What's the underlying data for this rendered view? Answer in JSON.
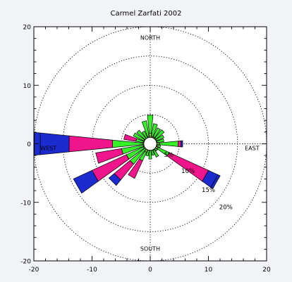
{
  "chart_data": {
    "type": "wind-rose",
    "title": "Carmel Zarfati 2002",
    "xlim": [
      -20,
      20
    ],
    "ylim": [
      -20,
      20
    ],
    "x_ticks": [
      "-20",
      "-10",
      "0",
      "10",
      "20"
    ],
    "y_ticks": [
      "20",
      "10",
      "0",
      "-10",
      "-20"
    ],
    "direction_labels": {
      "north": "NORTH",
      "south": "SOUTH",
      "east": "EAST",
      "west": "WEST"
    },
    "ring_labels": [
      "5%",
      "10%",
      "15%",
      "20%"
    ],
    "ring_values": [
      5,
      10,
      15,
      20
    ],
    "colors": {
      "bin1": "#a7cf3a",
      "bin2": "#35f228",
      "bin3": "#f0158a",
      "bin4": "#1c2bd0",
      "panel": "#ffffff",
      "background": "#f1f3f6"
    },
    "calm_radius": 1.1,
    "sectors": [
      {
        "direction_deg": 0,
        "cumulative": [
          1.8,
          4.9
        ]
      },
      {
        "direction_deg": 15,
        "cumulative": [
          1.3,
          3.5
        ]
      },
      {
        "direction_deg": 30,
        "cumulative": [
          1.3,
          3.0
        ]
      },
      {
        "direction_deg": 45,
        "cumulative": [
          1.3,
          3.1
        ]
      },
      {
        "direction_deg": 60,
        "cumulative": [
          1.2,
          2.6
        ]
      },
      {
        "direction_deg": 75,
        "cumulative": [
          1.2,
          2.4
        ]
      },
      {
        "direction_deg": 90,
        "cumulative": [
          1.6,
          4.8,
          5.3,
          5.6
        ]
      },
      {
        "direction_deg": 105,
        "cumulative": [
          1.2,
          1.8
        ]
      },
      {
        "direction_deg": 120,
        "cumulative": [
          1.5,
          3.6,
          11.0,
          12.8,
          13.2
        ]
      },
      {
        "direction_deg": 135,
        "cumulative": [
          1.1,
          1.6
        ]
      },
      {
        "direction_deg": 150,
        "cumulative": [
          1.2,
          2.5
        ]
      },
      {
        "direction_deg": 165,
        "cumulative": [
          1.1,
          2.0
        ]
      },
      {
        "direction_deg": 180,
        "cumulative": [
          1.1,
          2.6
        ]
      },
      {
        "direction_deg": 195,
        "cumulative": [
          1.1,
          2.1
        ]
      },
      {
        "direction_deg": 210,
        "cumulative": [
          1.6,
          3.2,
          6.5
        ]
      },
      {
        "direction_deg": 225,
        "cumulative": [
          1.1,
          4.5,
          8.0,
          9.2
        ]
      },
      {
        "direction_deg": 240,
        "cumulative": [
          1.3,
          4.5,
          11.0,
          14.5
        ]
      },
      {
        "direction_deg": 255,
        "cumulative": [
          1.2,
          5.0,
          9.5
        ]
      },
      {
        "direction_deg": 270,
        "cumulative": [
          1.3,
          6.5,
          14.0,
          19.0,
          20.0
        ]
      },
      {
        "direction_deg": 285,
        "cumulative": [
          1.2,
          2.5,
          4.6
        ]
      },
      {
        "direction_deg": 300,
        "cumulative": [
          1.2,
          3.2
        ]
      },
      {
        "direction_deg": 315,
        "cumulative": [
          1.1,
          3.0
        ]
      },
      {
        "direction_deg": 330,
        "cumulative": [
          1.1,
          2.4
        ]
      },
      {
        "direction_deg": 345,
        "cumulative": [
          1.3,
          4.0
        ]
      }
    ]
  }
}
